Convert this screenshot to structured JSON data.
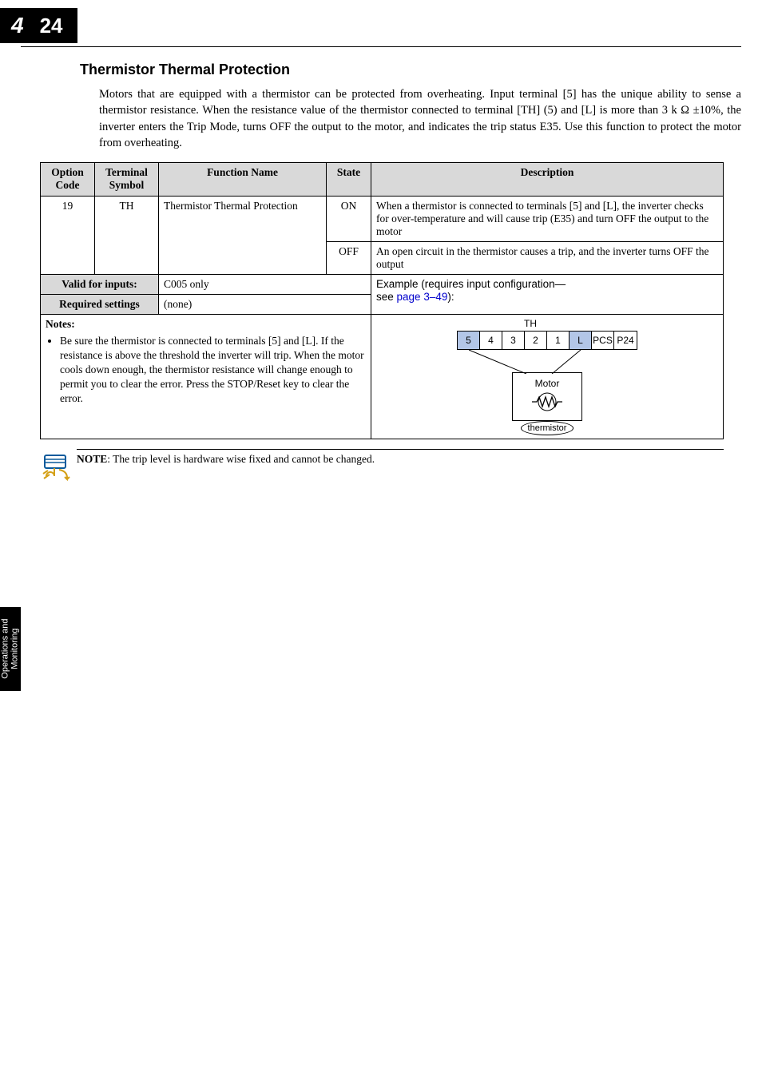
{
  "chapter": {
    "number": "4",
    "page": "24"
  },
  "section_title": "Thermistor Thermal Protection",
  "body_paragraph": "Motors that are equipped with a thermistor can be protected from overheating. Input terminal [5] has the unique ability to sense a thermistor resistance. When the resistance value of the thermistor connected to terminal [TH] (5) and [L] is more than 3 k Ω ±10%, the inverter enters the Trip Mode, turns OFF the output to the motor, and indicates the trip status E35. Use this function to protect the motor from overheating.",
  "table": {
    "headers": {
      "option_code": "Option Code",
      "terminal_symbol": "Terminal Symbol",
      "function_name": "Function Name",
      "state": "State",
      "description": "Description"
    },
    "row1": {
      "option_code": "19",
      "terminal_symbol": "TH",
      "function_name": "Thermistor Thermal Protection",
      "state": "ON",
      "description": "When a thermistor is connected to terminals [5] and [L], the inverter checks for over-temperature and will cause trip (E35) and turn OFF the output to the motor"
    },
    "row2": {
      "state": "OFF",
      "description": "An open circuit in the thermistor causes a trip, and the inverter turns OFF the output"
    },
    "valid_inputs": {
      "label": "Valid for inputs:",
      "value": "C005 only"
    },
    "required_settings": {
      "label": "Required settings",
      "value": "(none)"
    },
    "example": {
      "line1": "Example (requires input configuration—",
      "line2_prefix": "see ",
      "line2_link": "page 3–49",
      "line2_suffix": "):"
    },
    "notes": {
      "heading": "Notes:",
      "bullet": "Be sure the thermistor is connected to terminals [5] and [L]. If the resistance is above the threshold the inverter will trip. When the motor cools down enough, the thermistor resistance will change enough to permit you to clear the error. Press the STOP/Reset key to clear the error."
    },
    "diagram": {
      "th_label": "TH",
      "terminals": [
        "5",
        "4",
        "3",
        "2",
        "1",
        "L",
        "PCS",
        "P24"
      ],
      "highlight_indices": [
        0,
        5
      ],
      "motor_label": "Motor",
      "thermistor_label": "thermistor"
    }
  },
  "note_line": {
    "bold": "NOTE",
    "rest": ": The trip level is hardware wise fixed and cannot be changed."
  },
  "side_tab": {
    "line1": "Operations and",
    "line2": "Monitoring"
  },
  "colors": {
    "header_bg": "#d9d9d9",
    "highlight_bg": "#b3c6e7",
    "link": "#0000cc"
  }
}
